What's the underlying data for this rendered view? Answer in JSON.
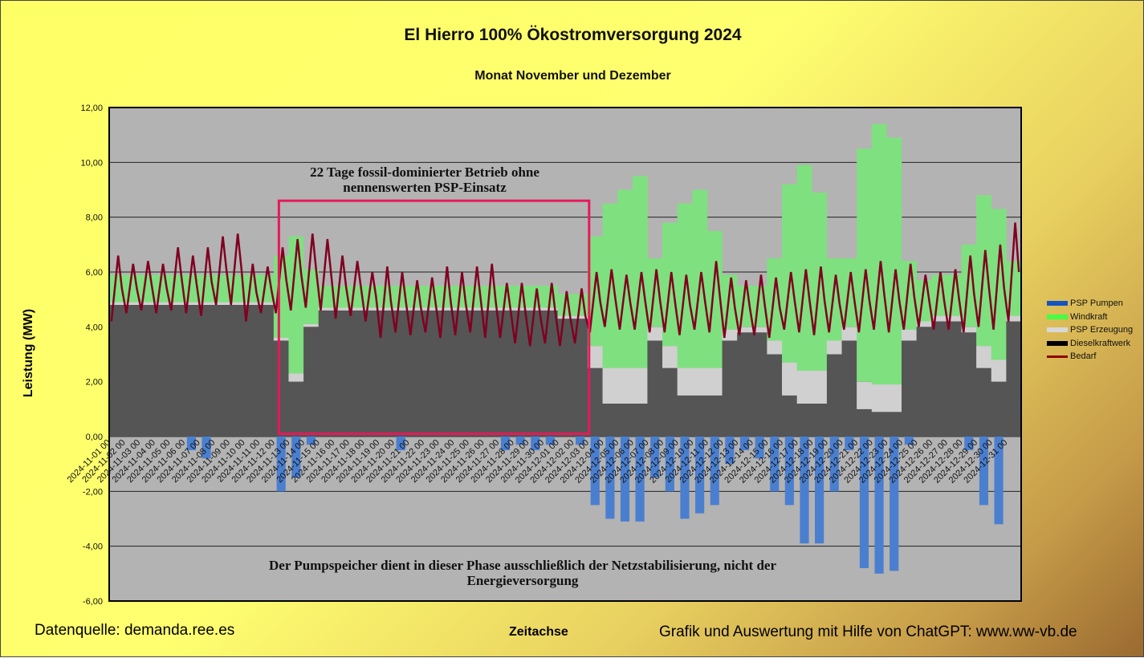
{
  "title": "El Hierro 100% Ökostromversorgung 2024",
  "subtitle": "Monat November und Dezember",
  "source": "Datenquelle: demanda.ree.es",
  "credit": "Grafik und Auswertung mit Hilfe von ChatGPT: www.ww-vb.de",
  "chart_data": {
    "type": "bar",
    "stacked": true,
    "xlabel": "Zeitachse",
    "ylabel": "Leistung (MW)",
    "ylim": [
      -6,
      12
    ],
    "yticks": [
      "-6,00",
      "-4,00",
      "-2,00",
      "0,00",
      "2,00",
      "4,00",
      "6,00",
      "8,00",
      "10,00",
      "12,00"
    ],
    "ytick_values": [
      -6,
      -4,
      -2,
      0,
      2,
      4,
      6,
      8,
      10,
      12
    ],
    "grid": true,
    "legend_placement": "right",
    "colors": {
      "PSP Pumpen": "#4a7fd0",
      "Windkraft": "#7fe07f",
      "PSP Erzeugung": "#d0d0d0",
      "Dieselkraftwerk": "#555555",
      "Bedarf": "#800020",
      "plot_bg": "#b3b3b3",
      "box": "#e8185a"
    },
    "legend_colors": [
      "#1455c0",
      "#44ff44",
      "#d8d8d8",
      "#000000",
      "#8b0000"
    ],
    "categories": [
      "2024-11-01 00",
      "2024-11-02 00",
      "2024-11-03 00",
      "2024-11-04 00",
      "2024-11-05 00",
      "2024-11-06 00",
      "2024-11-07 00",
      "2024-11-08 00",
      "2024-11-09 00",
      "2024-11-10 00",
      "2024-11-11 00",
      "2024-11-12 00",
      "2024-11-13 00",
      "2024-11-14 00",
      "2024-11-15 00",
      "2024-11-16 00",
      "2024-11-17 00",
      "2024-11-18 00",
      "2024-11-19 00",
      "2024-11-20 00",
      "2024-11-21 00",
      "2024-11-22 00",
      "2024-11-23 00",
      "2024-11-24 00",
      "2024-11-25 00",
      "2024-11-26 00",
      "2024-11-27 00",
      "2024-11-28 00",
      "2024-11-29 00",
      "2024-11-30 00",
      "2024-12-01 00",
      "2024-12-02 00",
      "2024-12-03 00",
      "2024-12-04 00",
      "2024-12-05 00",
      "2024-12-06 00",
      "2024-12-07 00",
      "2024-12-08 00",
      "2024-12-09 00",
      "2024-12-10 00",
      "2024-12-11 00",
      "2024-12-12 00",
      "2024-12-13 00",
      "2024-12-14 00",
      "2024-12-15 00",
      "2024-12-16 00",
      "2024-12-17 00",
      "2024-12-18 00",
      "2024-12-19 00",
      "2024-12-20 00",
      "2024-12-21 00",
      "2024-12-22 00",
      "2024-12-23 00",
      "2024-12-24 00",
      "2024-12-25 00",
      "2024-12-26 00",
      "2024-12-27 00",
      "2024-12-28 00",
      "2024-12-29 00",
      "2024-12-30 00",
      "2024-12-31 00"
    ],
    "series": [
      {
        "name": "PSP Pumpen",
        "values": [
          0,
          0,
          0,
          0,
          0,
          -0.5,
          -0.8,
          0,
          0,
          0,
          0,
          -2.0,
          -1.5,
          -0.3,
          0,
          0,
          0,
          0,
          0,
          -0.5,
          0,
          0,
          0,
          0,
          0,
          0,
          -0.5,
          -0.3,
          -0.5,
          -0.3,
          0,
          -0.3,
          -2.5,
          -3.0,
          -3.1,
          -3.1,
          -1.5,
          -2.0,
          -3.0,
          -2.8,
          -2.5,
          -1.0,
          -0.5,
          -0.8,
          -2.0,
          -2.5,
          -3.9,
          -3.9,
          -2.0,
          -0.5,
          -4.8,
          -5.0,
          -4.9,
          -0.3,
          0,
          0,
          0,
          -0.5,
          -2.5,
          -3.2,
          0
        ]
      },
      {
        "name": "Dieselkraftwerk",
        "values": [
          4.8,
          4.8,
          4.8,
          4.8,
          4.8,
          4.8,
          4.8,
          4.8,
          4.8,
          4.8,
          4.8,
          3.5,
          2.0,
          4.0,
          4.6,
          4.6,
          4.6,
          4.6,
          4.6,
          4.6,
          4.6,
          4.6,
          4.6,
          4.6,
          4.6,
          4.6,
          4.6,
          4.6,
          4.6,
          4.6,
          4.3,
          4.3,
          2.5,
          1.2,
          1.2,
          1.2,
          3.5,
          2.5,
          1.5,
          1.5,
          1.5,
          3.5,
          3.8,
          3.8,
          3.0,
          1.5,
          1.2,
          1.2,
          3.0,
          3.5,
          1.0,
          0.9,
          0.9,
          3.5,
          4.0,
          4.2,
          4.2,
          3.8,
          2.5,
          2.0,
          4.2
        ]
      },
      {
        "name": "PSP Erzeugung",
        "values": [
          0.1,
          0.1,
          0.1,
          0.1,
          0.1,
          0.1,
          0.1,
          0.1,
          0.1,
          0.1,
          0.1,
          0.1,
          0.3,
          0.1,
          0.1,
          0.1,
          0.1,
          0.1,
          0.1,
          0.1,
          0.1,
          0.1,
          0.1,
          0.1,
          0.1,
          0.1,
          0.1,
          0.1,
          0.1,
          0.1,
          0.1,
          0.1,
          0.8,
          1.3,
          1.3,
          1.3,
          0.5,
          0.8,
          1.0,
          1.0,
          1.0,
          0.4,
          0.2,
          0.2,
          0.5,
          1.2,
          1.2,
          1.2,
          0.5,
          0.5,
          1.0,
          1.0,
          1.0,
          0.4,
          0.2,
          0.2,
          0.2,
          0.2,
          0.8,
          0.8,
          0.2
        ]
      },
      {
        "name": "Windkraft",
        "values": [
          1.0,
          1.0,
          1.0,
          1.0,
          1.0,
          1.0,
          1.0,
          1.0,
          1.0,
          1.0,
          1.0,
          3.0,
          5.0,
          2.0,
          0.8,
          0.8,
          0.8,
          0.8,
          0.8,
          0.8,
          0.8,
          0.8,
          0.8,
          0.8,
          0.8,
          0.8,
          0.8,
          0.8,
          0.8,
          0.8,
          0.8,
          0.8,
          4.0,
          6.0,
          6.5,
          7.0,
          2.5,
          4.5,
          6.0,
          6.5,
          5.0,
          2.0,
          1.5,
          1.5,
          3.0,
          6.5,
          7.5,
          6.5,
          3.0,
          2.5,
          8.5,
          9.5,
          9.0,
          2.5,
          1.5,
          1.5,
          1.5,
          3.0,
          5.5,
          5.5,
          2.0
        ]
      },
      {
        "name": "Bedarf",
        "min": [
          4.2,
          4.5,
          4.6,
          4.5,
          4.6,
          4.5,
          4.4,
          4.8,
          4.8,
          4.2,
          4.5,
          4.5,
          4.6,
          4.7,
          4.6,
          4.3,
          4.4,
          4.2,
          3.6,
          3.8,
          3.7,
          3.8,
          3.6,
          3.7,
          3.8,
          3.6,
          3.6,
          3.4,
          3.3,
          3.4,
          3.3,
          3.4,
          3.8,
          4.0,
          3.9,
          3.9,
          3.8,
          3.8,
          3.7,
          3.9,
          3.8,
          3.6,
          3.7,
          3.7,
          3.6,
          3.9,
          3.8,
          3.7,
          3.8,
          3.9,
          3.8,
          3.9,
          3.8,
          3.9,
          4.0,
          3.9,
          3.9,
          3.8,
          4.0,
          3.9,
          4.2
        ],
        "max": [
          6.6,
          6.3,
          6.4,
          6.3,
          6.9,
          6.6,
          6.9,
          7.3,
          7.4,
          6.3,
          6.2,
          6.9,
          7.2,
          7.4,
          7.2,
          6.6,
          6.4,
          6.0,
          6.2,
          6.0,
          5.7,
          5.8,
          6.2,
          6.0,
          6.2,
          6.3,
          5.6,
          5.6,
          5.4,
          5.6,
          5.3,
          5.4,
          6.0,
          6.1,
          5.9,
          6.0,
          6.1,
          6.0,
          5.9,
          6.0,
          6.4,
          5.8,
          5.7,
          5.9,
          5.8,
          6.0,
          6.1,
          6.2,
          5.9,
          6.0,
          6.1,
          6.4,
          6.1,
          6.3,
          5.9,
          6.0,
          6.1,
          6.6,
          6.8,
          7.0,
          7.8
        ]
      }
    ],
    "annotations": {
      "box_label": [
        "22 Tage fossil-dominierter Betrieb ohne",
        "nennenswerten PSP-Einsatz"
      ],
      "bottom_note": [
        "Der Pumpspeicher dient in dieser Phase ausschließlich der Netzstabilisierung, nicht der",
        "Energieversorgung"
      ],
      "box_range": [
        "2024-11-12",
        "2024-12-03"
      ]
    }
  }
}
